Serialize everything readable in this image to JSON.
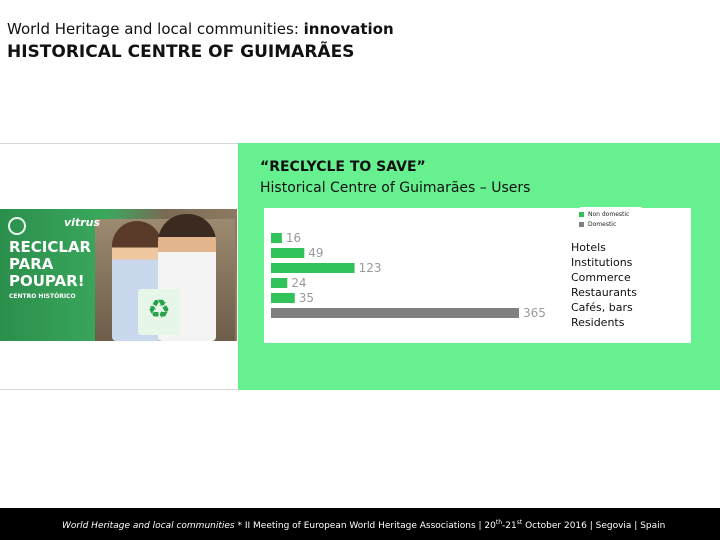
{
  "header": {
    "line1_prefix": "World Heritage and local communities: ",
    "line1_bold": "innovation",
    "title": "HISTORICAL CENTRE OF GUIMARÃES"
  },
  "slide": {
    "title": "“RECLYCLE TO SAVE”",
    "subtitle": "Historical Centre of Guimarães – Users"
  },
  "promo": {
    "headline": "RECICLAR PARA POUPAR!",
    "sub": "CENTRO HISTÓRICO",
    "brand": "vitrus",
    "icon": "recycle-icon"
  },
  "chart_data": {
    "type": "bar",
    "orientation": "horizontal",
    "categories": [
      "Hotels",
      "Institutions",
      "Commerce",
      "Restaurants",
      "Cafés, bars",
      "Residents"
    ],
    "values": [
      16,
      49,
      123,
      24,
      35,
      365
    ],
    "groups": [
      "Non domestic",
      "Non domestic",
      "Non domestic",
      "Non domestic",
      "Non domestic",
      "Domestic"
    ],
    "legend": [
      {
        "name": "Non domestic",
        "color": "#2fc35a"
      },
      {
        "name": "Domestic",
        "color": "#808080"
      }
    ],
    "legend_position": "top-right",
    "data_labels": true,
    "grid": false,
    "xlim": [
      0,
      365
    ]
  },
  "footer": {
    "italic": "World Heritage and local communities",
    "rest_pre": " * II Meeting of European World Heritage Associations | 20",
    "sup1": "th",
    "mid": "-21",
    "sup2": "st",
    "rest_post": " October 2016 | Segovia | Spain"
  },
  "colors": {
    "panel": "#66f08f",
    "non_domestic": "#2fc35a",
    "domestic": "#808080",
    "footer_bg": "#000000"
  }
}
